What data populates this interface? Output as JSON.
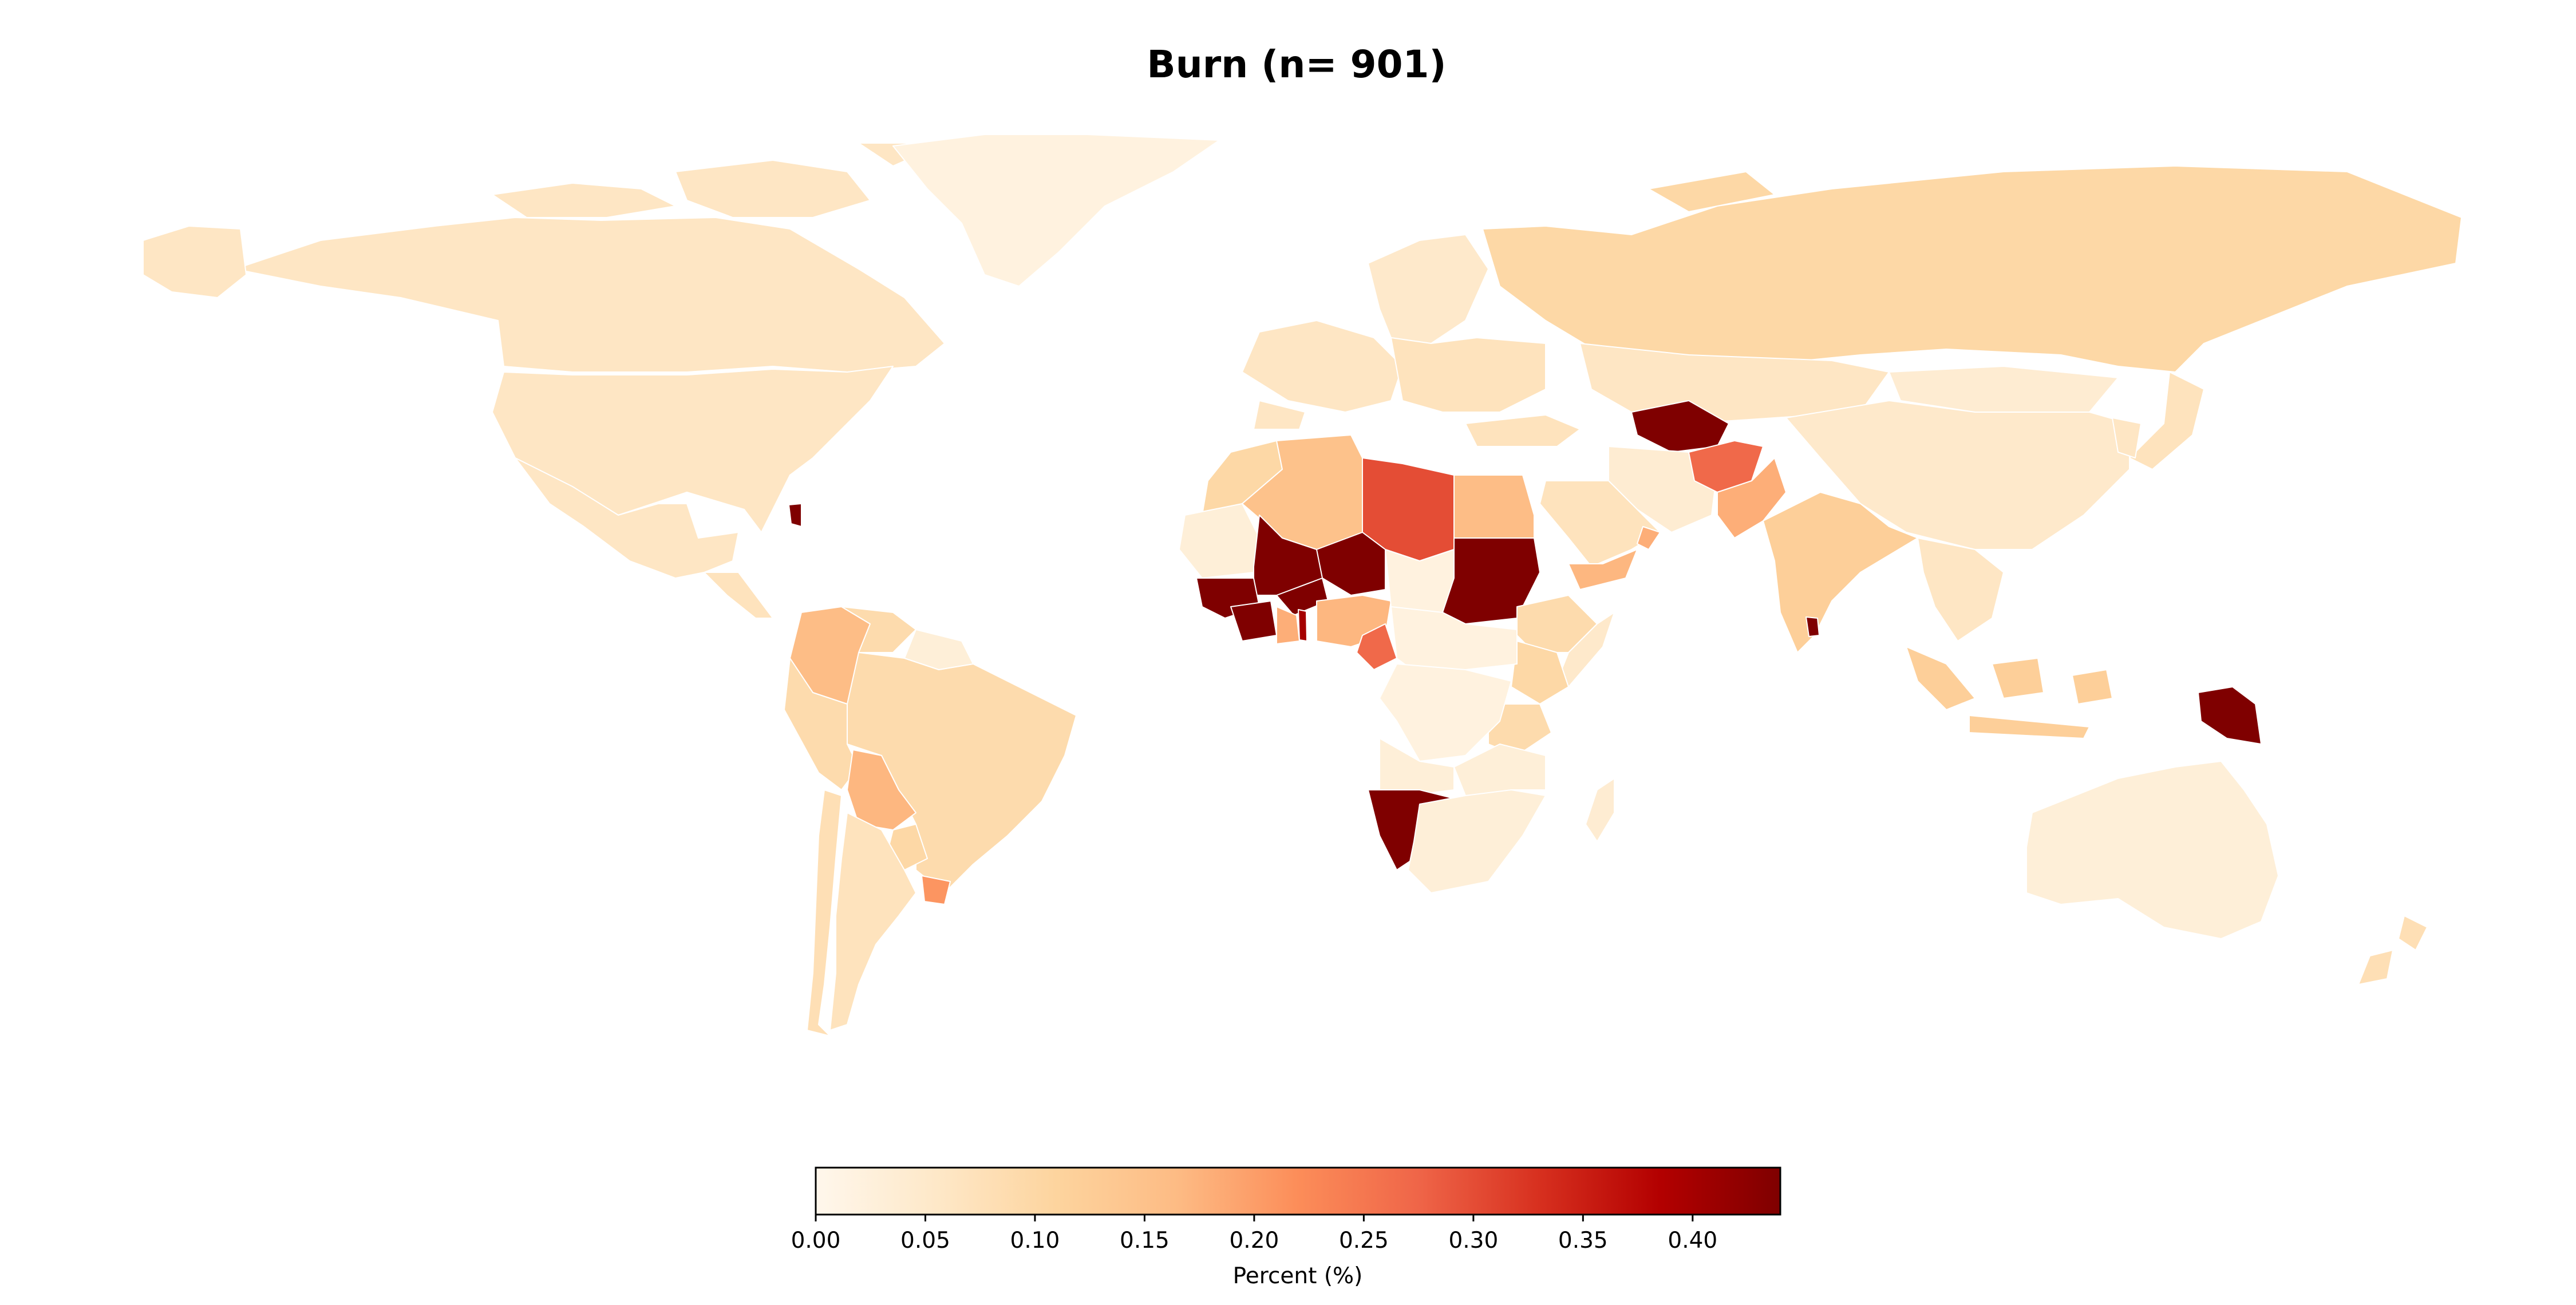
{
  "chart_data": {
    "type": "choropleth",
    "title": "Burn (n= 901)",
    "colorbar": {
      "label": "Percent (%)",
      "range": [
        0.0,
        0.44
      ],
      "ticks": [
        0.0,
        0.05,
        0.1,
        0.15,
        0.2,
        0.25,
        0.3,
        0.35,
        0.4
      ],
      "tick_labels": [
        "0.00",
        "0.05",
        "0.10",
        "0.15",
        "0.20",
        "0.25",
        "0.30",
        "0.35",
        "0.40"
      ],
      "colormap": "OrRd",
      "colormap_stops": [
        "#fff7ec",
        "#fee8c8",
        "#fdd49e",
        "#fdbb84",
        "#fc8d59",
        "#ef6548",
        "#d7301f",
        "#b30000",
        "#7f0000"
      ],
      "orientation": "horizontal",
      "placement": "bottom-center"
    },
    "regions": [
      {
        "name": "Canada",
        "value": 0.06
      },
      {
        "name": "United States",
        "value": 0.06
      },
      {
        "name": "Mexico",
        "value": 0.06
      },
      {
        "name": "Greenland",
        "value": 0.02
      },
      {
        "name": "Central America",
        "value": 0.07
      },
      {
        "name": "Colombia",
        "value": 0.16
      },
      {
        "name": "Venezuela",
        "value": 0.09
      },
      {
        "name": "Brazil",
        "value": 0.09
      },
      {
        "name": "Peru",
        "value": 0.09
      },
      {
        "name": "Bolivia",
        "value": 0.17
      },
      {
        "name": "Paraguay",
        "value": 0.1
      },
      {
        "name": "Argentina",
        "value": 0.07
      },
      {
        "name": "Chile",
        "value": 0.08
      },
      {
        "name": "Uruguay",
        "value": 0.21
      },
      {
        "name": "Guianas",
        "value": 0.03
      },
      {
        "name": "Haiti",
        "value": 0.44
      },
      {
        "name": "Russia",
        "value": 0.1
      },
      {
        "name": "Scandinavia",
        "value": 0.05
      },
      {
        "name": "Western Europe",
        "value": 0.06
      },
      {
        "name": "Eastern Europe",
        "value": 0.07
      },
      {
        "name": "Kazakhstan",
        "value": 0.06
      },
      {
        "name": "Turkmenistan",
        "value": 0.44
      },
      {
        "name": "Mongolia",
        "value": 0.04
      },
      {
        "name": "China",
        "value": 0.05
      },
      {
        "name": "Turkey",
        "value": 0.07
      },
      {
        "name": "Iran",
        "value": 0.04
      },
      {
        "name": "Saudi Arabia",
        "value": 0.07
      },
      {
        "name": "Yemen",
        "value": 0.17
      },
      {
        "name": "Oman",
        "value": 0.18
      },
      {
        "name": "Afghanistan",
        "value": 0.27
      },
      {
        "name": "Pakistan",
        "value": 0.18
      },
      {
        "name": "India",
        "value": 0.12
      },
      {
        "name": "Sri Lanka",
        "value": 0.44
      },
      {
        "name": "Southeast Asia",
        "value": 0.06
      },
      {
        "name": "Indonesia",
        "value": 0.12
      },
      {
        "name": "Papua New Guinea",
        "value": 0.44
      },
      {
        "name": "Japan",
        "value": 0.07
      },
      {
        "name": "Korea",
        "value": 0.06
      },
      {
        "name": "Australia",
        "value": 0.03
      },
      {
        "name": "New Zealand",
        "value": 0.08
      },
      {
        "name": "Morocco",
        "value": 0.1
      },
      {
        "name": "Algeria",
        "value": 0.15
      },
      {
        "name": "Libya",
        "value": 0.3
      },
      {
        "name": "Egypt",
        "value": 0.16
      },
      {
        "name": "Mauritania",
        "value": 0.03
      },
      {
        "name": "Mali",
        "value": 0.44
      },
      {
        "name": "Niger",
        "value": 0.44
      },
      {
        "name": "Burkina Faso",
        "value": 0.44
      },
      {
        "name": "Guinea",
        "value": 0.44
      },
      {
        "name": "Cote d'Ivoire",
        "value": 0.44
      },
      {
        "name": "Ghana",
        "value": 0.18
      },
      {
        "name": "Togo",
        "value": 0.4
      },
      {
        "name": "Nigeria",
        "value": 0.17
      },
      {
        "name": "Cameroon",
        "value": 0.27
      },
      {
        "name": "Chad",
        "value": 0.02
      },
      {
        "name": "Sudan",
        "value": 0.44
      },
      {
        "name": "Ethiopia",
        "value": 0.09
      },
      {
        "name": "Somalia",
        "value": 0.05
      },
      {
        "name": "Kenya",
        "value": 0.1
      },
      {
        "name": "Tanzania",
        "value": 0.09
      },
      {
        "name": "Central Africa",
        "value": 0.02
      },
      {
        "name": "DR Congo",
        "value": 0.02
      },
      {
        "name": "Angola",
        "value": 0.03
      },
      {
        "name": "Namibia",
        "value": 0.44
      },
      {
        "name": "Southern Africa",
        "value": 0.03
      },
      {
        "name": "Madagascar",
        "value": 0.04
      }
    ]
  }
}
